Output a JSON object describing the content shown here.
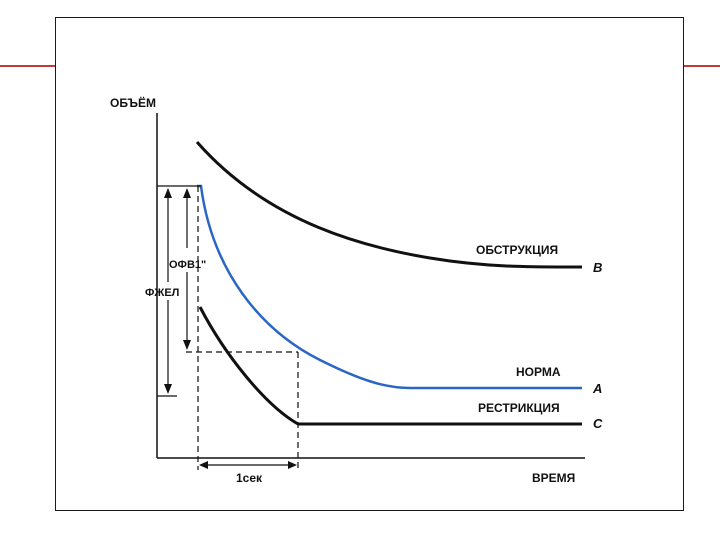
{
  "labels": {
    "y_axis": "ОБЪЁМ",
    "x_axis": "ВРЕМЯ",
    "fev1": "ОФВ1\"",
    "fvc": "ФЖЕЛ",
    "time_interval": "1сек"
  },
  "curves": {
    "obstruction": {
      "label": "ОБСТРУКЦИЯ",
      "letter": "B",
      "color": "#111111"
    },
    "normal": {
      "label": "НОРМА",
      "letter": "A",
      "color": "#2a67c4"
    },
    "restriction": {
      "label": "РЕСТРИКЦИЯ",
      "letter": "C",
      "color": "#111111"
    }
  },
  "colors": {
    "accent_line": "#c0393b",
    "axis": "#111111"
  }
}
